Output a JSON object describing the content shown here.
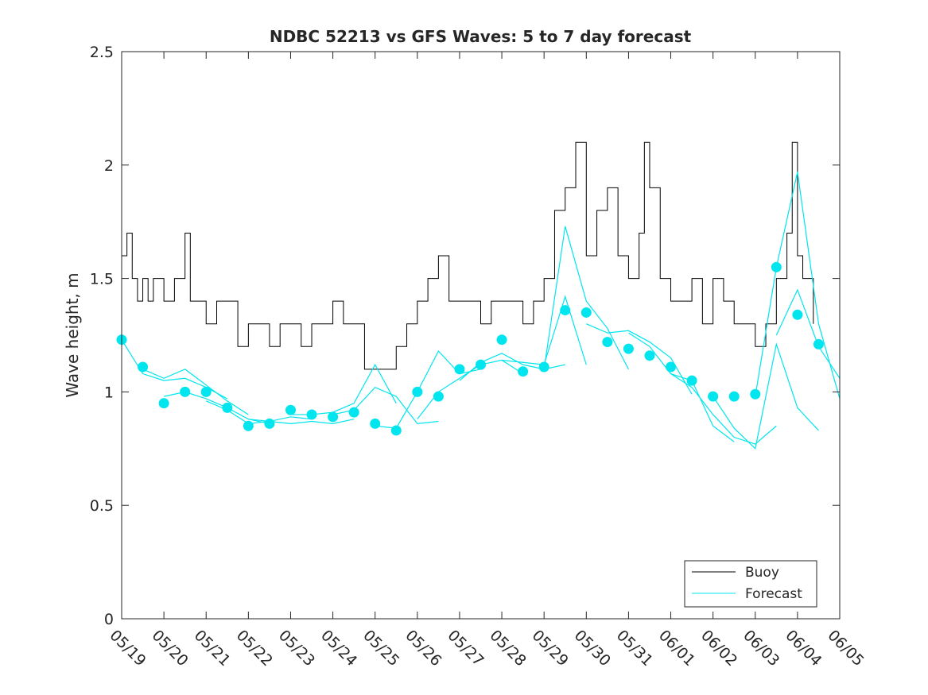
{
  "chart_data": {
    "type": "line",
    "title": "NDBC 52213 vs GFS Waves: 5 to 7 day forecast",
    "ylabel": "Wave height, m",
    "xlabel": "",
    "xlim": [
      "2024-05-19",
      "2024-06-05"
    ],
    "ylim": [
      0,
      2.5
    ],
    "yticks": [
      0,
      0.5,
      1,
      1.5,
      2,
      2.5
    ],
    "ytick_labels": [
      "0",
      "0.5",
      "1",
      "1.5",
      "2",
      "2.5"
    ],
    "xtick_labels": [
      "05/19",
      "05/20",
      "05/21",
      "05/22",
      "05/23",
      "05/24",
      "05/25",
      "05/26",
      "05/27",
      "05/28",
      "05/29",
      "05/30",
      "05/31",
      "06/01",
      "06/02",
      "06/03",
      "06/04",
      "06/05"
    ],
    "legend": {
      "position": "bottom-right",
      "entries": [
        {
          "label": "Buoy",
          "color": "#000000"
        },
        {
          "label": "Forecast",
          "color": "#00e5ee"
        }
      ]
    },
    "colors": {
      "buoy": "#000000",
      "forecast": "#00e5ee",
      "axes": "#262626"
    },
    "buoy": {
      "name": "Buoy",
      "x": [
        "2024-05-19",
        "2024-05-19T03",
        "2024-05-19T06",
        "2024-05-19T09",
        "2024-05-19T12",
        "2024-05-19T15",
        "2024-05-19T18",
        "2024-05-20",
        "2024-05-20T06",
        "2024-05-20T12",
        "2024-05-20T15",
        "2024-05-20T18",
        "2024-05-21",
        "2024-05-21T06",
        "2024-05-21T12",
        "2024-05-21T18",
        "2024-05-22",
        "2024-05-22T06",
        "2024-05-22T12",
        "2024-05-22T18",
        "2024-05-23",
        "2024-05-23T06",
        "2024-05-23T12",
        "2024-05-23T18",
        "2024-05-24",
        "2024-05-24T06",
        "2024-05-24T12",
        "2024-05-24T18",
        "2024-05-25",
        "2024-05-25T06",
        "2024-05-25T12",
        "2024-05-25T18",
        "2024-05-26",
        "2024-05-26T06",
        "2024-05-26T12",
        "2024-05-26T18",
        "2024-05-27",
        "2024-05-27T06",
        "2024-05-27T12",
        "2024-05-27T18",
        "2024-05-28",
        "2024-05-28T06",
        "2024-05-28T12",
        "2024-05-28T18",
        "2024-05-29",
        "2024-05-29T06",
        "2024-05-29T12",
        "2024-05-29T18",
        "2024-05-30",
        "2024-05-30T06",
        "2024-05-30T12",
        "2024-05-30T18",
        "2024-05-31",
        "2024-05-31T06",
        "2024-05-31T09",
        "2024-05-31T12",
        "2024-05-31T18",
        "2024-06-01",
        "2024-06-01T06",
        "2024-06-01T12",
        "2024-06-01T18",
        "2024-06-02",
        "2024-06-02T06",
        "2024-06-02T12",
        "2024-06-02T18",
        "2024-06-03",
        "2024-06-03T06",
        "2024-06-03T12",
        "2024-06-03T18",
        "2024-06-03T21",
        "2024-06-04",
        "2024-06-04T03",
        "2024-06-04T06",
        "2024-06-04T09"
      ],
      "y": [
        1.6,
        1.7,
        1.5,
        1.4,
        1.5,
        1.4,
        1.5,
        1.4,
        1.5,
        1.7,
        1.4,
        1.4,
        1.3,
        1.4,
        1.4,
        1.2,
        1.3,
        1.3,
        1.2,
        1.3,
        1.3,
        1.2,
        1.3,
        1.3,
        1.4,
        1.3,
        1.3,
        1.1,
        1.1,
        1.1,
        1.2,
        1.3,
        1.4,
        1.5,
        1.6,
        1.4,
        1.4,
        1.4,
        1.3,
        1.4,
        1.4,
        1.4,
        1.3,
        1.4,
        1.5,
        1.8,
        1.9,
        2.1,
        1.6,
        1.8,
        1.9,
        1.6,
        1.5,
        1.7,
        2.1,
        1.9,
        1.5,
        1.4,
        1.4,
        1.5,
        1.3,
        1.5,
        1.4,
        1.3,
        1.3,
        1.2,
        1.3,
        1.5,
        1.7,
        2.1,
        1.6,
        1.5,
        1.5,
        1.3
      ]
    },
    "forecast_points": {
      "name": "Forecast",
      "x": [
        "2024-05-19",
        "2024-05-19T12",
        "2024-05-20",
        "2024-05-20T12",
        "2024-05-21",
        "2024-05-21T12",
        "2024-05-22",
        "2024-05-22T12",
        "2024-05-23",
        "2024-05-23T12",
        "2024-05-24",
        "2024-05-24T12",
        "2024-05-25",
        "2024-05-25T12",
        "2024-05-26",
        "2024-05-26T12",
        "2024-05-27",
        "2024-05-27T12",
        "2024-05-28",
        "2024-05-28T12",
        "2024-05-29",
        "2024-05-29T12",
        "2024-05-30",
        "2024-05-30T12",
        "2024-05-31",
        "2024-05-31T12",
        "2024-06-01",
        "2024-06-01T12",
        "2024-06-02",
        "2024-06-02T12",
        "2024-06-03",
        "2024-06-03T12",
        "2024-06-04",
        "2024-06-04T12"
      ],
      "y": [
        1.23,
        1.11,
        0.95,
        1.0,
        1.0,
        0.93,
        0.85,
        0.86,
        0.92,
        0.9,
        0.89,
        0.91,
        0.86,
        0.83,
        1.0,
        0.98,
        1.1,
        1.12,
        1.23,
        1.09,
        1.11,
        1.36,
        1.35,
        1.22,
        1.19,
        1.16,
        1.11,
        1.05,
        0.98,
        0.98,
        0.99,
        1.55,
        1.34,
        1.21
      ]
    },
    "forecast_runs": [
      {
        "x": [
          "2024-05-19",
          "2024-05-19T12",
          "2024-05-20",
          "2024-05-20T12",
          "2024-05-21",
          "2024-05-21T12"
        ],
        "y": [
          1.23,
          1.08,
          1.05,
          1.06,
          1.02,
          0.97
        ]
      },
      {
        "x": [
          "2024-05-19T12",
          "2024-05-20",
          "2024-05-20T12",
          "2024-05-21",
          "2024-05-21T12",
          "2024-05-22"
        ],
        "y": [
          1.1,
          1.06,
          1.1,
          1.03,
          0.96,
          0.9
        ]
      },
      {
        "x": [
          "2024-05-20",
          "2024-05-20T12",
          "2024-05-21",
          "2024-05-21T12",
          "2024-05-22",
          "2024-05-22T12"
        ],
        "y": [
          0.98,
          1.0,
          0.97,
          0.93,
          0.88,
          0.86
        ]
      },
      {
        "x": [
          "2024-05-21",
          "2024-05-21T12",
          "2024-05-22",
          "2024-05-22T12",
          "2024-05-23",
          "2024-05-23T12"
        ],
        "y": [
          0.96,
          0.92,
          0.86,
          0.87,
          0.89,
          0.88
        ]
      },
      {
        "x": [
          "2024-05-22",
          "2024-05-22T12",
          "2024-05-23",
          "2024-05-23T12",
          "2024-05-24",
          "2024-05-24T12"
        ],
        "y": [
          0.88,
          0.87,
          0.86,
          0.87,
          0.86,
          0.88
        ]
      },
      {
        "x": [
          "2024-05-23",
          "2024-05-23T12",
          "2024-05-24",
          "2024-05-24T12",
          "2024-05-25",
          "2024-05-25T12"
        ],
        "y": [
          0.9,
          0.9,
          0.91,
          0.95,
          1.12,
          0.95
        ]
      },
      {
        "x": [
          "2024-05-24",
          "2024-05-24T12",
          "2024-05-25",
          "2024-05-25T12",
          "2024-05-26",
          "2024-05-26T12"
        ],
        "y": [
          0.9,
          0.92,
          1.02,
          0.98,
          0.86,
          0.87
        ]
      },
      {
        "x": [
          "2024-05-25",
          "2024-05-25T12",
          "2024-05-26",
          "2024-05-26T12",
          "2024-05-27",
          "2024-05-27T12"
        ],
        "y": [
          0.85,
          0.84,
          1.0,
          1.18,
          1.08,
          1.1
        ]
      },
      {
        "x": [
          "2024-05-26",
          "2024-05-26T12",
          "2024-05-27",
          "2024-05-27T12",
          "2024-05-28",
          "2024-05-28T12"
        ],
        "y": [
          0.88,
          1.0,
          1.06,
          1.12,
          1.14,
          1.08
        ]
      },
      {
        "x": [
          "2024-05-27",
          "2024-05-27T12",
          "2024-05-28",
          "2024-05-28T12",
          "2024-05-29",
          "2024-05-29T12"
        ],
        "y": [
          1.05,
          1.13,
          1.17,
          1.12,
          1.1,
          1.12
        ]
      },
      {
        "x": [
          "2024-05-28",
          "2024-05-28T12",
          "2024-05-29",
          "2024-05-29T12",
          "2024-05-30"
        ],
        "y": [
          1.14,
          1.13,
          1.12,
          1.42,
          1.12
        ]
      },
      {
        "x": [
          "2024-05-29",
          "2024-05-29T12",
          "2024-05-30",
          "2024-05-30T12",
          "2024-05-31"
        ],
        "y": [
          1.1,
          1.73,
          1.4,
          1.28,
          1.1
        ]
      },
      {
        "x": [
          "2024-05-30",
          "2024-05-30T12",
          "2024-05-31",
          "2024-05-31T12",
          "2024-06-01",
          "2024-06-01T12"
        ],
        "y": [
          1.3,
          1.26,
          1.27,
          1.22,
          1.15,
          0.99
        ]
      },
      {
        "x": [
          "2024-05-31",
          "2024-05-31T12",
          "2024-06-01",
          "2024-06-01T12",
          "2024-06-02",
          "2024-06-02T12"
        ],
        "y": [
          1.26,
          1.2,
          1.08,
          1.05,
          0.85,
          0.78
        ]
      },
      {
        "x": [
          "2024-06-01",
          "2024-06-01T12",
          "2024-06-02",
          "2024-06-02T12",
          "2024-06-03",
          "2024-06-03T12"
        ],
        "y": [
          1.08,
          1.02,
          0.9,
          0.8,
          0.77,
          0.85
        ]
      },
      {
        "x": [
          "2024-06-02",
          "2024-06-02T12",
          "2024-06-03",
          "2024-06-03T12",
          "2024-06-04",
          "2024-06-04T12"
        ],
        "y": [
          0.98,
          0.84,
          0.75,
          1.21,
          0.93,
          0.83
        ]
      },
      {
        "x": [
          "2024-06-03",
          "2024-06-03T12",
          "2024-06-04",
          "2024-06-04T12",
          "2024-06-05"
        ],
        "y": [
          0.98,
          1.55,
          1.97,
          1.3,
          0.97
        ]
      },
      {
        "x": [
          "2024-06-03T12",
          "2024-06-04",
          "2024-06-04T12",
          "2024-06-05"
        ],
        "y": [
          1.25,
          1.45,
          1.2,
          1.06
        ]
      }
    ]
  }
}
